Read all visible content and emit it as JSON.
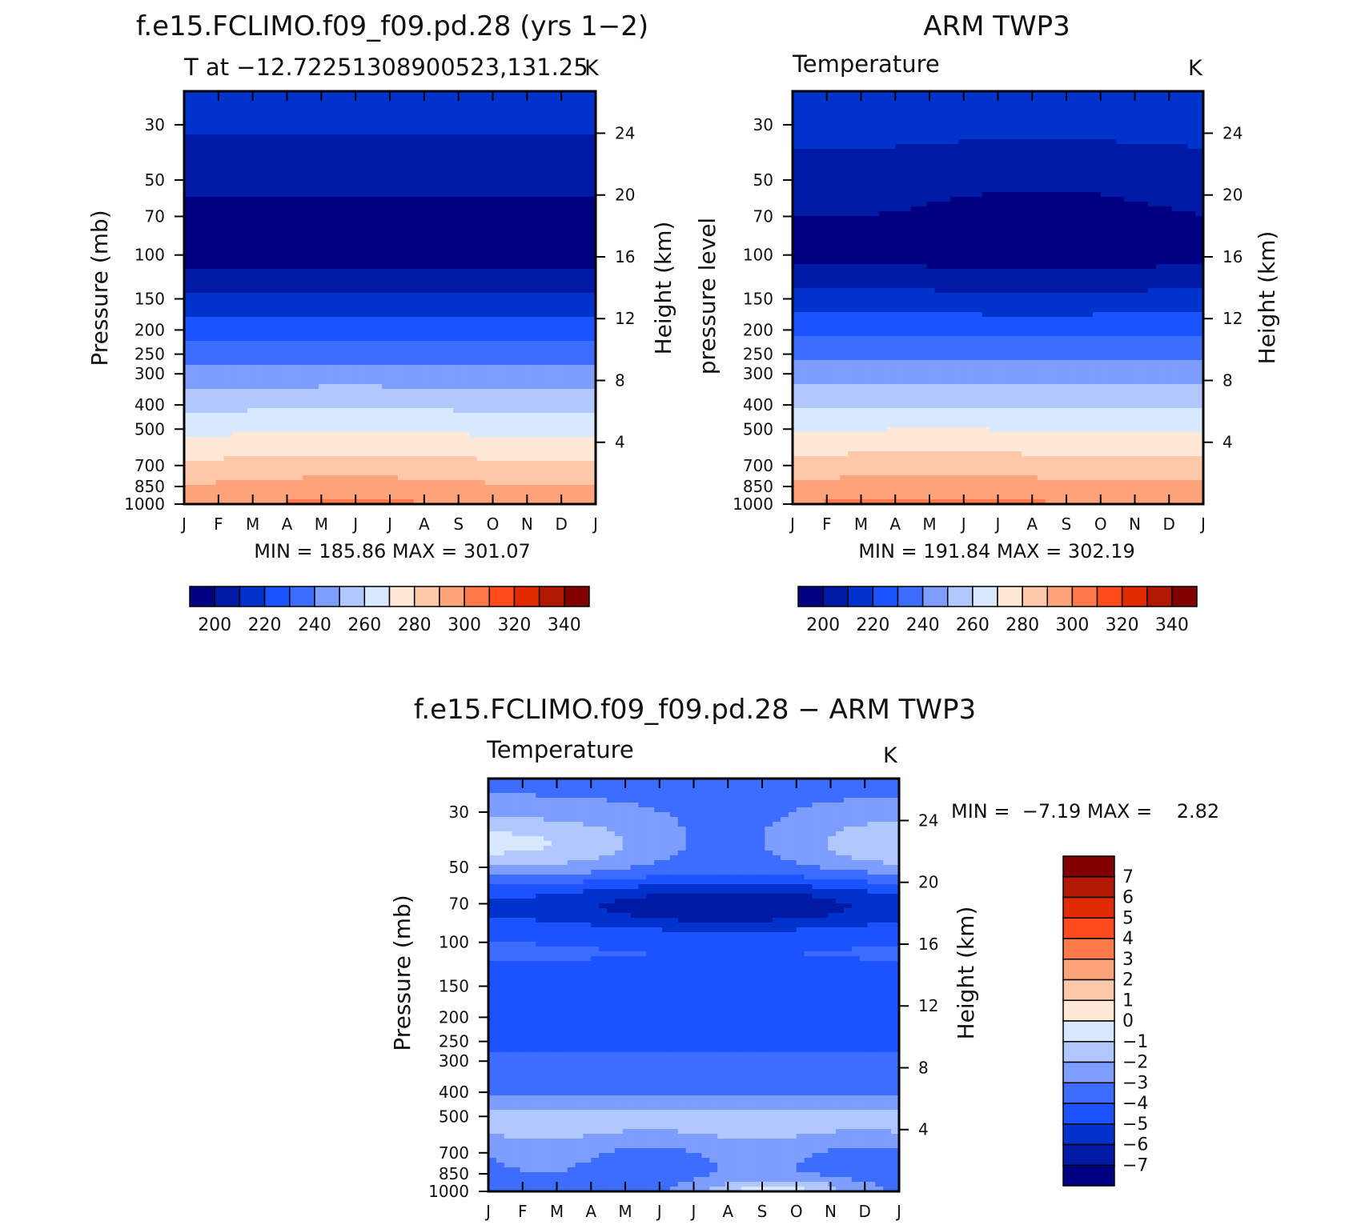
{
  "panels": {
    "model": {
      "title": "f.e15.FCLIMO.f09_f09.pd.28 (yrs 1−2)",
      "subtitle": "T at −12.72251308900523,131.25",
      "units": "K",
      "ylabel_left": "Pressure (mb)",
      "ylabel_right": "Height (km)",
      "min_max": "MIN = 185.86 MAX = 301.07"
    },
    "obs": {
      "title": "ARM TWP3",
      "subtitle": "Temperature",
      "units": "K",
      "ylabel_left": "pressure level",
      "ylabel_right": "Height (km)",
      "min_max": "MIN = 191.84 MAX = 302.19"
    },
    "diff": {
      "title": "f.e15.FCLIMO.f09_f09.pd.28 − ARM TWP3",
      "subtitle": "Temperature",
      "units": "K",
      "ylabel_left": "Pressure (mb)",
      "ylabel_right": "Height (km)",
      "min_max": "MIN =  −7.19 MAX =    2.82"
    }
  },
  "chart_data": [
    {
      "type": "heatmap",
      "name": "model",
      "title": "f.e15.FCLIMO.f09_f09.pd.28 (yrs 1−2)",
      "xlabel": "",
      "ylabel": "Pressure (mb)",
      "x_ticks": [
        "J",
        "F",
        "M",
        "A",
        "M",
        "J",
        "J",
        "A",
        "S",
        "O",
        "N",
        "D",
        "J"
      ],
      "y_ticks": [
        30,
        50,
        70,
        100,
        150,
        200,
        250,
        300,
        400,
        500,
        700,
        850,
        1000
      ],
      "height_ticks_km": [
        24,
        20,
        16,
        12,
        8,
        4
      ],
      "ylim_mb": [
        22,
        1000
      ],
      "y_scale": "log",
      "color_levels": [
        200,
        210,
        220,
        230,
        240,
        250,
        260,
        270,
        280,
        290,
        300,
        310,
        320,
        330,
        340
      ],
      "colorbar_labels": [
        200,
        220,
        240,
        260,
        280,
        300,
        320,
        340
      ],
      "colors": [
        "#000080",
        "#001aa6",
        "#0033cc",
        "#1a53ff",
        "#3d6dff",
        "#7d9dff",
        "#b0c8ff",
        "#d8e8ff",
        "#ffe8d6",
        "#ffc8aa",
        "#ffa47a",
        "#ff7a4a",
        "#ff4c1a",
        "#e02b00",
        "#b01800",
        "#800000"
      ]
    },
    {
      "type": "heatmap",
      "name": "obs",
      "title": "ARM TWP3",
      "xlabel": "",
      "ylabel": "pressure level",
      "x_ticks": [
        "J",
        "F",
        "M",
        "A",
        "M",
        "J",
        "J",
        "A",
        "S",
        "O",
        "N",
        "D",
        "J"
      ],
      "y_ticks": [
        30,
        50,
        70,
        100,
        150,
        200,
        250,
        300,
        400,
        500,
        700,
        850,
        1000
      ],
      "height_ticks_km": [
        24,
        20,
        16,
        12,
        8,
        4
      ],
      "ylim_mb": [
        22,
        1000
      ],
      "y_scale": "log",
      "color_levels": [
        200,
        210,
        220,
        230,
        240,
        250,
        260,
        270,
        280,
        290,
        300,
        310,
        320,
        330,
        340
      ],
      "colorbar_labels": [
        200,
        220,
        240,
        260,
        280,
        300,
        320,
        340
      ],
      "colors": [
        "#000080",
        "#001aa6",
        "#0033cc",
        "#1a53ff",
        "#3d6dff",
        "#7d9dff",
        "#b0c8ff",
        "#d8e8ff",
        "#ffe8d6",
        "#ffc8aa",
        "#ffa47a",
        "#ff7a4a",
        "#ff4c1a",
        "#e02b00",
        "#b01800",
        "#800000"
      ]
    },
    {
      "type": "heatmap",
      "name": "diff",
      "title": "f.e15.FCLIMO.f09_f09.pd.28 − ARM TWP3",
      "xlabel": "",
      "ylabel": "Pressure (mb)",
      "x_ticks": [
        "J",
        "F",
        "M",
        "A",
        "M",
        "J",
        "J",
        "A",
        "S",
        "O",
        "N",
        "D",
        "J"
      ],
      "y_ticks": [
        30,
        50,
        70,
        100,
        150,
        200,
        250,
        300,
        400,
        500,
        700,
        850,
        1000
      ],
      "height_ticks_km": [
        24,
        20,
        16,
        12,
        8,
        4
      ],
      "ylim_mb": [
        22,
        1000
      ],
      "y_scale": "log",
      "color_levels": [
        -7,
        -6,
        -5,
        -4,
        -3,
        -2,
        -1,
        0,
        1,
        2,
        3,
        4,
        5,
        6,
        7
      ],
      "colorbar_labels": [
        7,
        6,
        5,
        4,
        3,
        2,
        1,
        0,
        -1,
        -2,
        -3,
        -4,
        -5,
        -6,
        -7
      ],
      "colors": [
        "#000080",
        "#001aa6",
        "#0033cc",
        "#1a53ff",
        "#3d6dff",
        "#7d9dff",
        "#b0c8ff",
        "#d8e8ff",
        "#ffe8d6",
        "#ffc8aa",
        "#ffa47a",
        "#ff7a4a",
        "#ff4c1a",
        "#e02b00",
        "#b01800",
        "#800000"
      ]
    }
  ]
}
